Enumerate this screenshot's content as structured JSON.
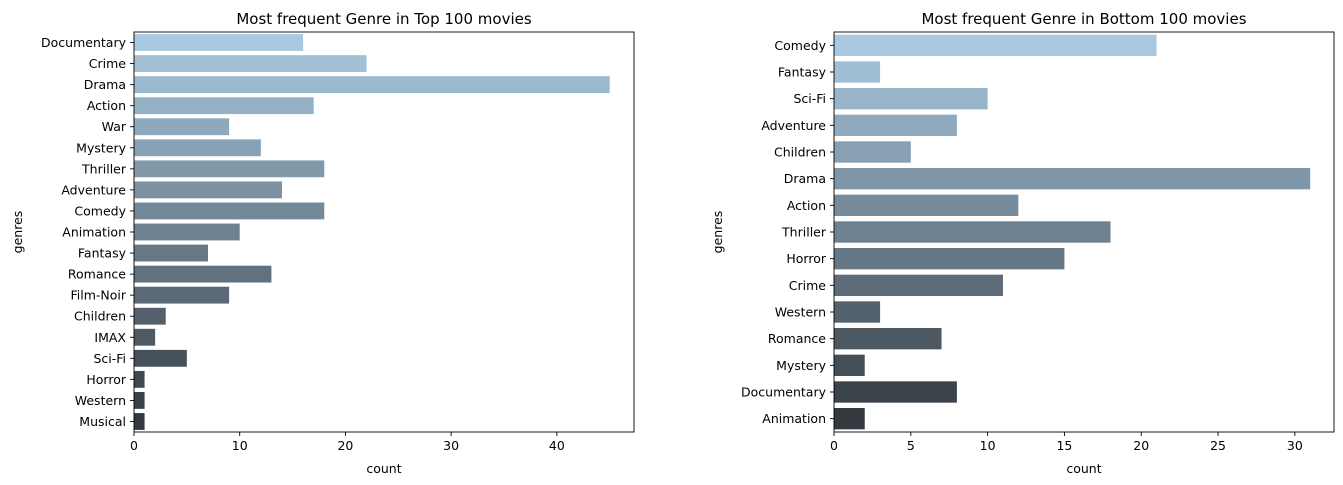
{
  "chart_data": [
    {
      "type": "bar",
      "orientation": "horizontal",
      "title": "Most frequent Genre in Top 100 movies",
      "xlabel": "count",
      "ylabel": "genres",
      "xlim": [
        0,
        47.3
      ],
      "xticks": [
        0,
        10,
        20,
        30,
        40
      ],
      "grid": false,
      "categories": [
        "Documentary",
        "Crime",
        "Drama",
        "Action",
        "War",
        "Mystery",
        "Thriller",
        "Adventure",
        "Comedy",
        "Animation",
        "Fantasy",
        "Romance",
        "Film-Noir",
        "Children",
        "IMAX",
        "Sci-Fi",
        "Horror",
        "Western",
        "Musical"
      ],
      "values": [
        16,
        22,
        45,
        17,
        9,
        12,
        18,
        14,
        18,
        10,
        7,
        13,
        9,
        3,
        2,
        5,
        1,
        1,
        1
      ],
      "palette": [
        "#a8c9e0",
        "#33393f"
      ]
    },
    {
      "type": "bar",
      "orientation": "horizontal",
      "title": "Most frequent Genre in Bottom 100 movies",
      "xlabel": "count",
      "ylabel": "genres",
      "xlim": [
        0,
        32.55
      ],
      "xticks": [
        0,
        5,
        10,
        15,
        20,
        25,
        30
      ],
      "grid": false,
      "categories": [
        "Comedy",
        "Fantasy",
        "Sci-Fi",
        "Adventure",
        "Children",
        "Drama",
        "Action",
        "Thriller",
        "Horror",
        "Crime",
        "Western",
        "Romance",
        "Mystery",
        "Documentary",
        "Animation"
      ],
      "values": [
        21,
        3,
        10,
        8,
        5,
        31,
        12,
        18,
        15,
        11,
        3,
        7,
        2,
        8,
        2
      ],
      "palette": [
        "#a8c9e0",
        "#33393f"
      ]
    }
  ]
}
